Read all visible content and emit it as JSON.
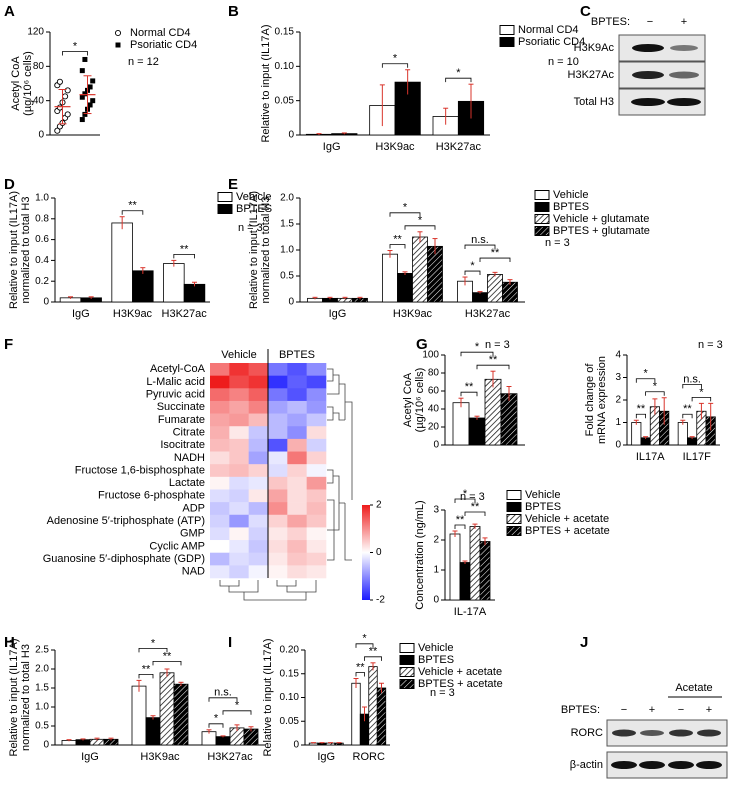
{
  "panel_labels": [
    "A",
    "B",
    "C",
    "D",
    "E",
    "F",
    "G",
    "H",
    "I",
    "J"
  ],
  "blot_c": {
    "header": "BPTES:",
    "lanes": [
      "−",
      "+"
    ],
    "bands": [
      "H3K9Ac",
      "H3K27Ac",
      "Total H3"
    ]
  },
  "blot_j": {
    "header": "BPTES:",
    "group": "Acetate",
    "lanes": [
      "−",
      "+",
      "−",
      "+"
    ],
    "bands": [
      "RORC",
      "β-actin"
    ]
  },
  "chart_data": [
    {
      "type": "dot",
      "ylabel": [
        "Acetyl CoA",
        "(µg/10⁶ cells)"
      ],
      "ylim": [
        0,
        120
      ],
      "yticks": [
        0,
        40,
        80,
        120
      ],
      "series": [
        {
          "name": "Normal CD4",
          "marker": "open-circle",
          "color": "#000000",
          "values": [
            5,
            10,
            14,
            20,
            24,
            28,
            32,
            38,
            45,
            52,
            58,
            62
          ],
          "mean": 33,
          "sd": 20
        },
        {
          "name": "Psoriatic CD4",
          "marker": "filled-square",
          "color": "#000000",
          "values": [
            18,
            24,
            30,
            35,
            40,
            44,
            48,
            52,
            56,
            63,
            75,
            88
          ],
          "mean": 47,
          "sd": 22
        }
      ],
      "error_color": "#d9342b",
      "significance": [
        {
          "pair": [
            0,
            1
          ],
          "label": "*"
        }
      ],
      "note": "n = 12",
      "legend": "right"
    },
    {
      "type": "bar",
      "ylabel": [
        "Relative to input (IL17A)"
      ],
      "ylim": [
        0,
        0.15
      ],
      "yticks": [
        0,
        0.05,
        {
          "value": 0.1,
          "label": "0.10"
        },
        0.15
      ],
      "categories": [
        "IgG",
        "H3K9ac",
        "H3K27ac"
      ],
      "series": [
        {
          "name": "Normal CD4",
          "color": "#ffffff",
          "values": [
            0.001,
            0.043,
            0.027
          ],
          "errors": [
            0.001,
            0.03,
            0.012
          ]
        },
        {
          "name": "Psoriatic CD4",
          "color": "#000000",
          "values": [
            0.002,
            0.077,
            0.049
          ],
          "errors": [
            0.001,
            0.018,
            0.025
          ]
        }
      ],
      "error_color": "#d9342b",
      "significance": [
        {
          "category": 1,
          "pair": [
            0,
            1
          ],
          "label": "*"
        },
        {
          "category": 2,
          "pair": [
            0,
            1
          ],
          "label": "*"
        }
      ],
      "note": "n = 10",
      "legend": "upper right"
    },
    {
      "type": "bar",
      "ylabel": [
        "Relative to input (IL17A)",
        "normalized to total H3"
      ],
      "ylim": [
        0,
        1
      ],
      "yticks": [
        0,
        0.2,
        0.4,
        0.6,
        0.8,
        {
          "value": 1,
          "label": "1.0"
        }
      ],
      "categories": [
        "IgG",
        "H3K9ac",
        "H3K27ac"
      ],
      "series": [
        {
          "name": "Vehicle",
          "color": "#ffffff",
          "values": [
            0.04,
            0.76,
            0.37
          ],
          "errors": [
            0.01,
            0.06,
            0.03
          ]
        },
        {
          "name": "BPTES",
          "color": "#000000",
          "values": [
            0.04,
            0.3,
            0.17
          ],
          "errors": [
            0.01,
            0.03,
            0.02
          ]
        }
      ],
      "error_color": "#d9342b",
      "significance": [
        {
          "category": 1,
          "pair": [
            0,
            1
          ],
          "label": "**"
        },
        {
          "category": 2,
          "pair": [
            0,
            1
          ],
          "label": "**"
        }
      ],
      "note": "n = 3",
      "legend": "upper right"
    },
    {
      "type": "bar",
      "ylabel": [
        "Relative to input (IL17A)",
        "normalized to total H3"
      ],
      "ylim": [
        0,
        2
      ],
      "yticks": [
        0,
        0.5,
        {
          "value": 1,
          "label": "1.0"
        },
        1.5,
        {
          "value": 2,
          "label": "2.0"
        }
      ],
      "categories": [
        "IgG",
        "H3K9ac",
        "H3K27ac"
      ],
      "series": [
        {
          "name": "Vehicle",
          "color": "#ffffff",
          "values": [
            0.07,
            0.92,
            0.4
          ],
          "errors": [
            0.02,
            0.07,
            0.08
          ]
        },
        {
          "name": "BPTES",
          "color": "#000000",
          "values": [
            0.07,
            0.55,
            0.18
          ],
          "errors": [
            0.02,
            0.03,
            0.02
          ]
        },
        {
          "name": "Vehicle + glutamate",
          "color": "#ffffff",
          "pattern": "hatch",
          "values": [
            0.07,
            1.25,
            0.53
          ],
          "errors": [
            0.02,
            0.1,
            0.04
          ]
        },
        {
          "name": "BPTES + glutamate",
          "color": "#000000",
          "pattern": "hatch-dense",
          "values": [
            0.07,
            1.07,
            0.38
          ],
          "errors": [
            0.02,
            0.15,
            0.05
          ]
        }
      ],
      "error_color": "#d9342b",
      "significance": [
        {
          "category": 1,
          "pair": [
            0,
            1
          ],
          "label": "**"
        },
        {
          "category": 1,
          "pair": [
            1,
            3
          ],
          "label": "*"
        },
        {
          "category": 1,
          "pair": [
            0,
            2
          ],
          "label": "*"
        },
        {
          "category": 2,
          "pair": [
            0,
            1
          ],
          "label": "*"
        },
        {
          "category": 2,
          "pair": [
            1,
            3
          ],
          "label": "**"
        },
        {
          "category": 2,
          "pair": [
            0,
            2
          ],
          "label": "n.s."
        }
      ],
      "note": "n = 3",
      "legend": "upper right"
    },
    {
      "type": "heatmap",
      "column_groups": [
        "Vehicle",
        "BPTES"
      ],
      "rows": [
        "Acetyl-CoA",
        "L-Malic acid",
        "Pyruvic acid",
        "Succinate",
        "Fumarate",
        "Citrate",
        "Isocitrate",
        "NADH",
        "Fructose 1,6-bisphosphate",
        "Lactate",
        "Fructose 6-phosphate",
        "ADP",
        "Adenosine 5′-triphosphate (ATP)",
        "GMP",
        "Cyclic AMP",
        "Guanosine 5′-diphosphate (GDP)",
        "NAD"
      ],
      "values": [
        [
          1.2,
          1.8,
          1.5,
          -1.2,
          -1.5,
          -1.0
        ],
        [
          2.0,
          1.6,
          1.8,
          -1.8,
          -1.4,
          -1.6
        ],
        [
          1.3,
          1.1,
          1.4,
          -1.2,
          -1.5,
          -1.0
        ],
        [
          1.0,
          0.8,
          1.1,
          -0.8,
          -0.6,
          -0.9
        ],
        [
          0.8,
          0.9,
          0.6,
          -0.6,
          -0.8,
          -0.5
        ],
        [
          0.7,
          0.2,
          -0.5,
          -0.6,
          -1.0,
          0.3
        ],
        [
          0.6,
          0.5,
          -0.6,
          -1.5,
          0.7,
          -0.4
        ],
        [
          0.3,
          0.5,
          -0.8,
          -0.2,
          1.2,
          0.4
        ],
        [
          0.5,
          0.6,
          0.4,
          -0.3,
          0.4,
          -0.1
        ],
        [
          0.1,
          -0.3,
          -0.2,
          0.5,
          0.3,
          0.9
        ],
        [
          -0.3,
          -0.4,
          0.2,
          0.8,
          0.3,
          0.5
        ],
        [
          -0.5,
          -0.3,
          -0.6,
          1.0,
          0.3,
          0.6
        ],
        [
          -0.4,
          -0.9,
          -0.3,
          0.4,
          0.8,
          0.5
        ],
        [
          -0.3,
          0.1,
          -0.4,
          0.2,
          0.4,
          0.1
        ],
        [
          0.0,
          -0.2,
          -0.5,
          0.3,
          0.6,
          0.2
        ],
        [
          -0.6,
          -0.3,
          -0.4,
          0.2,
          0.5,
          0.4
        ],
        [
          -0.2,
          -0.4,
          -0.1,
          0.1,
          0.3,
          0.2
        ]
      ],
      "zlim": [
        -2,
        2
      ],
      "zticks": [
        -2,
        0,
        2
      ],
      "colors": [
        "#1a1aff",
        "#ffffff",
        "#ee1c1c"
      ]
    },
    {
      "type": "bar",
      "ylabel": [
        "Acetyl CoA",
        "(µg/10⁶ cells)"
      ],
      "ylim": [
        0,
        100
      ],
      "yticks": [
        0,
        20,
        40,
        60,
        80,
        100
      ],
      "categories": [
        null
      ],
      "series": [
        {
          "name": "Vehicle",
          "color": "#ffffff",
          "values": [
            47
          ],
          "errors": [
            5
          ]
        },
        {
          "name": "BPTES",
          "color": "#000000",
          "values": [
            30
          ],
          "errors": [
            2
          ]
        },
        {
          "name": "Vehicle + acetate",
          "color": "#ffffff",
          "pattern": "hatch",
          "values": [
            73
          ],
          "errors": [
            9
          ]
        },
        {
          "name": "BPTES + acetate",
          "color": "#000000",
          "pattern": "hatch-dense",
          "values": [
            57
          ],
          "errors": [
            8
          ]
        }
      ],
      "error_color": "#d9342b",
      "significance": [
        {
          "category": 0,
          "pair": [
            0,
            1
          ],
          "label": "**"
        },
        {
          "category": 0,
          "pair": [
            1,
            3
          ],
          "label": "**"
        },
        {
          "category": 0,
          "pair": [
            0,
            2
          ],
          "label": "*"
        }
      ],
      "note": "n = 3"
    },
    {
      "type": "bar",
      "ylabel": [
        "Fold change of",
        "mRNA expression"
      ],
      "ylim": [
        0,
        4
      ],
      "yticks": [
        0,
        1,
        2,
        3,
        4
      ],
      "categories": [
        "IL17A",
        "IL17F"
      ],
      "series": [
        {
          "name": "Vehicle",
          "color": "#ffffff",
          "values": [
            1.0,
            1.0
          ],
          "errors": [
            0.1,
            0.1
          ]
        },
        {
          "name": "BPTES",
          "color": "#000000",
          "values": [
            0.32,
            0.32
          ],
          "errors": [
            0.05,
            0.05
          ]
        },
        {
          "name": "Vehicle + acetate",
          "color": "#ffffff",
          "pattern": "hatch",
          "values": [
            1.7,
            1.5
          ],
          "errors": [
            0.35,
            0.35
          ]
        },
        {
          "name": "BPTES + acetate",
          "color": "#000000",
          "pattern": "hatch-dense",
          "values": [
            1.5,
            1.25
          ],
          "errors": [
            0.6,
            0.6
          ]
        }
      ],
      "error_color": "#d9342b",
      "significance": [
        {
          "category": 0,
          "pair": [
            0,
            1
          ],
          "label": "**"
        },
        {
          "category": 0,
          "pair": [
            1,
            3
          ],
          "label": "*"
        },
        {
          "category": 0,
          "pair": [
            0,
            2
          ],
          "label": "*"
        },
        {
          "category": 1,
          "pair": [
            0,
            1
          ],
          "label": "**"
        },
        {
          "category": 1,
          "pair": [
            1,
            3
          ],
          "label": "*"
        },
        {
          "category": 1,
          "pair": [
            0,
            2
          ],
          "label": "n.s."
        }
      ],
      "note": "n = 3"
    },
    {
      "type": "bar",
      "ylabel": [
        "Concentration (ng/mL)"
      ],
      "ylim": [
        0,
        3
      ],
      "yticks": [
        0,
        1,
        2,
        3
      ],
      "categories": [
        "IL-17A"
      ],
      "series": [
        {
          "name": "Vehicle",
          "color": "#ffffff",
          "values": [
            2.2
          ],
          "errors": [
            0.1
          ]
        },
        {
          "name": "BPTES",
          "color": "#000000",
          "values": [
            1.25
          ],
          "errors": [
            0.05
          ]
        },
        {
          "name": "Vehicle + acetate",
          "color": "#ffffff",
          "pattern": "hatch",
          "values": [
            2.45
          ],
          "errors": [
            0.08
          ]
        },
        {
          "name": "BPTES + acetate",
          "color": "#000000",
          "pattern": "hatch-dense",
          "values": [
            1.95
          ],
          "errors": [
            0.12
          ]
        }
      ],
      "error_color": "#d9342b",
      "significance": [
        {
          "category": 0,
          "pair": [
            0,
            1
          ],
          "label": "**"
        },
        {
          "category": 0,
          "pair": [
            1,
            3
          ],
          "label": "**"
        },
        {
          "category": 0,
          "pair": [
            0,
            2
          ],
          "label": "*"
        }
      ],
      "note": "n = 3",
      "legend": "right"
    },
    {
      "type": "bar",
      "ylabel": [
        "Relative to input (IL17A)",
        "normalized to total H3"
      ],
      "ylim": [
        0,
        2.5
      ],
      "yticks": [
        0,
        0.5,
        {
          "value": 1,
          "label": "1.0"
        },
        1.5,
        {
          "value": 2,
          "label": "2.0"
        },
        2.5
      ],
      "categories": [
        "IgG",
        "H3K9ac",
        "H3K27ac"
      ],
      "series": [
        {
          "name": "Vehicle",
          "color": "#ffffff",
          "values": [
            0.12,
            1.55,
            0.35
          ],
          "errors": [
            0.02,
            0.15,
            0.05
          ]
        },
        {
          "name": "BPTES",
          "color": "#000000",
          "values": [
            0.14,
            0.72,
            0.22
          ],
          "errors": [
            0.02,
            0.05,
            0.02
          ]
        },
        {
          "name": "Vehicle + acetate",
          "color": "#ffffff",
          "pattern": "hatch",
          "values": [
            0.15,
            1.9,
            0.45
          ],
          "errors": [
            0.03,
            0.1,
            0.08
          ]
        },
        {
          "name": "BPTES + acetate",
          "color": "#000000",
          "pattern": "hatch-dense",
          "values": [
            0.15,
            1.6,
            0.42
          ],
          "errors": [
            0.03,
            0.05,
            0.06
          ]
        }
      ],
      "error_color": "#d9342b",
      "significance": [
        {
          "category": 1,
          "pair": [
            0,
            1
          ],
          "label": "**"
        },
        {
          "category": 1,
          "pair": [
            1,
            3
          ],
          "label": "**"
        },
        {
          "category": 1,
          "pair": [
            0,
            2
          ],
          "label": "*"
        },
        {
          "category": 2,
          "pair": [
            0,
            1
          ],
          "label": "*"
        },
        {
          "category": 2,
          "pair": [
            1,
            3
          ],
          "label": "*"
        },
        {
          "category": 2,
          "pair": [
            0,
            2
          ],
          "label": "n.s."
        }
      ]
    },
    {
      "type": "bar",
      "ylabel": [
        "Relative to input (IL17A)"
      ],
      "ylim": [
        0,
        0.2
      ],
      "yticks": [
        0,
        0.05,
        {
          "value": 0.1,
          "label": "0.10"
        },
        0.15,
        {
          "value": 0.2,
          "label": "0.20"
        }
      ],
      "categories": [
        "IgG",
        "RORC"
      ],
      "series": [
        {
          "name": "Vehicle",
          "color": "#ffffff",
          "values": [
            0.004,
            0.13
          ],
          "errors": [
            0.001,
            0.01
          ]
        },
        {
          "name": "BPTES",
          "color": "#000000",
          "values": [
            0.004,
            0.065
          ],
          "errors": [
            0.001,
            0.015
          ]
        },
        {
          "name": "Vehicle + acetate",
          "color": "#ffffff",
          "pattern": "hatch",
          "values": [
            0.004,
            0.165
          ],
          "errors": [
            0.001,
            0.008
          ]
        },
        {
          "name": "BPTES + acetate",
          "color": "#000000",
          "pattern": "hatch-dense",
          "values": [
            0.004,
            0.12
          ],
          "errors": [
            0.001,
            0.01
          ]
        }
      ],
      "error_color": "#d9342b",
      "significance": [
        {
          "category": 1,
          "pair": [
            0,
            1
          ],
          "label": "**"
        },
        {
          "category": 1,
          "pair": [
            1,
            3
          ],
          "label": "**"
        },
        {
          "category": 1,
          "pair": [
            0,
            2
          ],
          "label": "*"
        }
      ],
      "note": "n = 3",
      "legend": "right"
    }
  ]
}
